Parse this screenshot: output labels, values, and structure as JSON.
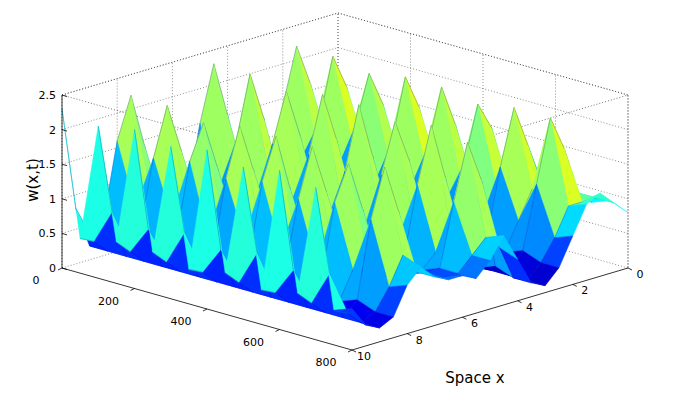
{
  "chart_data": {
    "type": "surface",
    "xlabel": "Space x",
    "zlabel": "w(x,t)",
    "x": [
      0,
      0.5,
      1,
      1.5,
      2,
      2.5,
      3,
      3.5,
      4,
      4.5,
      5,
      5.5,
      6,
      6.5,
      7,
      7.5,
      8,
      8.5,
      9,
      9.5,
      10
    ],
    "y": [
      0,
      50,
      100,
      150,
      200,
      250,
      300,
      350,
      400,
      450,
      500,
      550,
      600,
      650,
      700,
      750,
      800
    ],
    "xlim": [
      0,
      10
    ],
    "xticks": [
      0,
      2,
      4,
      6,
      8,
      10
    ],
    "ylim": [
      0,
      800
    ],
    "yticks": [
      0,
      200,
      400,
      600,
      800
    ],
    "zlim": [
      0,
      2.5
    ],
    "zticks": [
      0,
      0.5,
      1,
      1.5,
      2,
      2.5
    ],
    "grid": true,
    "z": [
      [
        0.3,
        0.6,
        1.6,
        2.2,
        1.4,
        0.4,
        0.1,
        0.3,
        1.5,
        2.3,
        1.5,
        0.4,
        0.1,
        0.3,
        1.4,
        2.2,
        1.6,
        0.5,
        0.2,
        0.8,
        2.3
      ],
      [
        0.4,
        0.5,
        0.8,
        1.0,
        0.7,
        0.3,
        0.1,
        0.2,
        0.6,
        0.9,
        0.6,
        0.3,
        0.2,
        0.3,
        0.6,
        0.9,
        0.7,
        0.3,
        0.2,
        0.4,
        0.5
      ],
      [
        0.3,
        0.7,
        1.7,
        2.2,
        1.3,
        0.4,
        0.1,
        0.3,
        1.6,
        2.3,
        1.4,
        0.4,
        0.1,
        0.3,
        1.5,
        2.2,
        1.5,
        0.5,
        0.2,
        0.9,
        2.2
      ],
      [
        0.4,
        0.5,
        0.9,
        1.1,
        0.7,
        0.3,
        0.1,
        0.2,
        0.7,
        1.0,
        0.6,
        0.3,
        0.2,
        0.3,
        0.7,
        1.0,
        0.7,
        0.3,
        0.2,
        0.4,
        0.6
      ],
      [
        0.4,
        0.7,
        1.6,
        2.1,
        1.4,
        0.4,
        0.1,
        0.3,
        1.5,
        2.2,
        1.5,
        0.4,
        0.1,
        0.3,
        1.4,
        2.1,
        1.6,
        0.5,
        0.2,
        0.8,
        2.3
      ],
      [
        0.5,
        0.6,
        0.8,
        1.0,
        0.6,
        0.3,
        0.1,
        0.2,
        0.6,
        1.0,
        0.7,
        0.3,
        0.2,
        0.3,
        0.6,
        0.9,
        0.6,
        0.3,
        0.2,
        0.4,
        0.6
      ],
      [
        0.4,
        0.8,
        1.7,
        2.2,
        1.3,
        0.4,
        0.1,
        0.3,
        1.6,
        2.3,
        1.5,
        0.4,
        0.1,
        0.3,
        1.5,
        2.2,
        1.5,
        0.4,
        0.2,
        0.9,
        2.2
      ],
      [
        0.5,
        0.6,
        0.9,
        1.1,
        0.7,
        0.3,
        0.1,
        0.2,
        0.7,
        0.9,
        0.6,
        0.3,
        0.2,
        0.3,
        0.7,
        1.0,
        0.7,
        0.3,
        0.2,
        0.4,
        0.5
      ],
      [
        0.5,
        0.8,
        1.6,
        2.2,
        1.4,
        0.4,
        0.1,
        0.3,
        1.5,
        2.3,
        1.4,
        0.4,
        0.1,
        0.3,
        1.4,
        2.2,
        1.6,
        0.5,
        0.2,
        0.8,
        2.3
      ],
      [
        0.6,
        0.7,
        0.8,
        1.0,
        0.7,
        0.3,
        0.1,
        0.2,
        0.6,
        1.0,
        0.6,
        0.3,
        0.2,
        0.4,
        0.6,
        0.9,
        0.7,
        0.3,
        0.2,
        0.4,
        0.6
      ],
      [
        0.6,
        0.9,
        1.7,
        2.1,
        1.3,
        0.4,
        0.1,
        0.3,
        1.6,
        2.2,
        1.5,
        0.4,
        0.2,
        0.4,
        1.5,
        2.2,
        1.5,
        0.5,
        0.2,
        0.9,
        2.2
      ],
      [
        0.7,
        0.8,
        0.9,
        1.0,
        0.6,
        0.3,
        0.1,
        0.2,
        0.7,
        0.9,
        0.7,
        0.3,
        0.2,
        0.4,
        0.7,
        1.0,
        0.6,
        0.3,
        0.2,
        0.4,
        0.5
      ],
      [
        0.7,
        1.0,
        1.6,
        2.2,
        1.4,
        0.4,
        0.1,
        0.3,
        1.5,
        2.3,
        1.5,
        0.5,
        0.3,
        0.5,
        1.4,
        2.1,
        1.6,
        0.5,
        0.2,
        0.8,
        2.3
      ],
      [
        0.8,
        0.9,
        0.9,
        1.1,
        0.7,
        0.3,
        0.1,
        0.2,
        0.6,
        1.0,
        0.6,
        0.4,
        0.4,
        0.5,
        0.6,
        0.9,
        0.7,
        0.3,
        0.2,
        0.4,
        0.6
      ],
      [
        0.8,
        1.0,
        1.7,
        2.2,
        1.3,
        0.4,
        0.1,
        0.3,
        1.6,
        2.2,
        1.4,
        0.5,
        0.5,
        0.6,
        1.5,
        2.2,
        1.5,
        0.4,
        0.2,
        0.9,
        2.2
      ],
      [
        0.9,
        1.0,
        1.0,
        1.0,
        0.6,
        0.3,
        0.1,
        0.2,
        0.7,
        0.9,
        0.7,
        0.5,
        0.5,
        0.6,
        0.7,
        1.0,
        0.6,
        0.3,
        0.2,
        0.4,
        0.5
      ],
      [
        0.8,
        1.0,
        1.2,
        1.1,
        0.7,
        0.3,
        0.1,
        0.2,
        0.6,
        1.0,
        0.7,
        0.5,
        0.6,
        0.6,
        0.7,
        0.9,
        0.7,
        0.3,
        0.2,
        0.3,
        0.6
      ]
    ]
  }
}
